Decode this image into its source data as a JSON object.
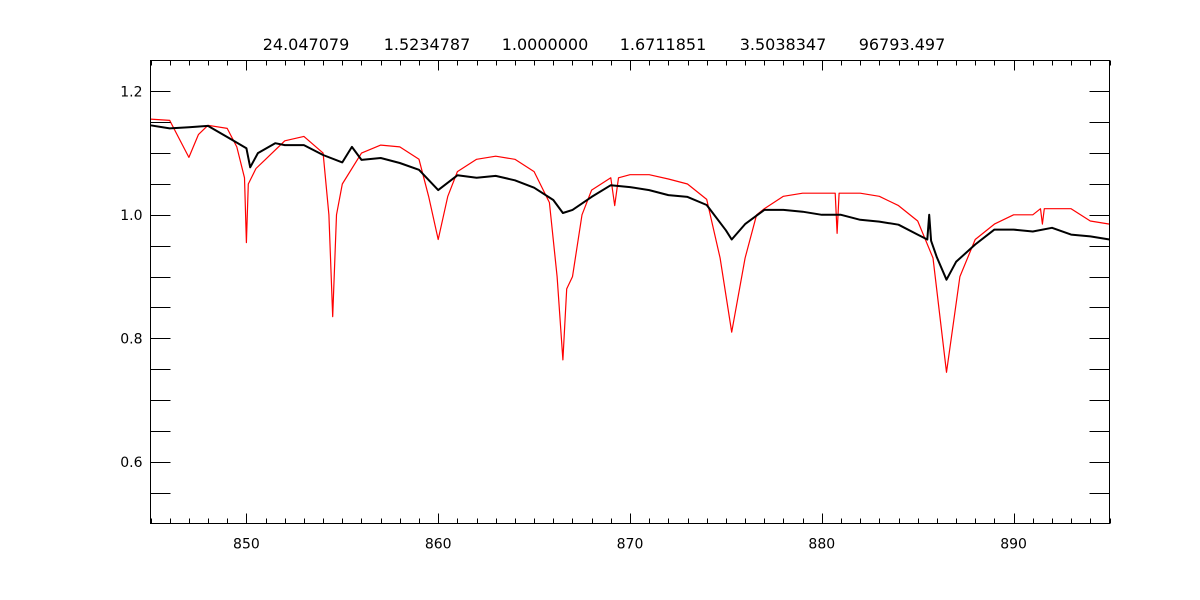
{
  "chart_data": {
    "type": "line",
    "title_values": [
      "24.047079",
      "1.5234787",
      "1.0000000",
      "1.6711851",
      "3.5038347",
      "96793.497"
    ],
    "xlabel": "",
    "ylabel": "",
    "xlim": [
      845,
      895
    ],
    "ylim": [
      0.5,
      1.25
    ],
    "x_ticks": [
      850,
      860,
      870,
      880,
      890
    ],
    "x_tick_labels": [
      "850",
      "860",
      "870",
      "880",
      "890"
    ],
    "x_minor_step": 1,
    "y_ticks": [
      0.6,
      0.8,
      1.0,
      1.2
    ],
    "y_tick_labels": [
      "0.6",
      "0.8",
      "1.0",
      "1.2"
    ],
    "y_minor_step": 0.05,
    "grid": false,
    "series": [
      {
        "color": "#ff0000",
        "x": [
          845,
          846,
          847,
          847.5,
          848,
          849,
          849.5,
          849.9,
          850.0,
          850.1,
          850.5,
          851,
          852,
          853,
          854,
          854.3,
          854.5,
          854.7,
          855,
          856,
          857,
          858,
          859,
          859.5,
          860,
          860.5,
          861,
          862,
          863,
          864,
          865,
          865.8,
          866.2,
          866.5,
          866.7,
          867,
          867.5,
          868,
          869,
          869.2,
          869.4,
          870,
          871,
          872,
          873,
          874,
          874.7,
          875.3,
          876,
          876.6,
          877,
          878,
          879,
          880,
          880.7,
          880.8,
          880.9,
          882,
          883,
          884,
          885,
          885.8,
          886.5,
          887.2,
          888,
          889,
          890,
          891,
          891.4,
          891.5,
          891.6,
          892,
          893,
          894,
          895
        ],
        "y": [
          1.155,
          1.153,
          1.093,
          1.13,
          1.145,
          1.14,
          1.11,
          1.06,
          0.955,
          1.05,
          1.075,
          1.09,
          1.12,
          1.127,
          1.1,
          1.0,
          0.835,
          1.0,
          1.05,
          1.1,
          1.113,
          1.11,
          1.09,
          1.03,
          0.96,
          1.03,
          1.07,
          1.09,
          1.095,
          1.09,
          1.07,
          1.02,
          0.9,
          0.765,
          0.88,
          0.9,
          1.0,
          1.04,
          1.06,
          1.015,
          1.06,
          1.065,
          1.065,
          1.058,
          1.05,
          1.025,
          0.93,
          0.81,
          0.93,
          1.0,
          1.01,
          1.03,
          1.035,
          1.035,
          1.035,
          0.97,
          1.035,
          1.035,
          1.03,
          1.015,
          0.99,
          0.93,
          0.745,
          0.9,
          0.96,
          0.985,
          1.0,
          1.0,
          1.01,
          0.985,
          1.01,
          1.01,
          1.01,
          0.99,
          0.985
        ]
      },
      {
        "color": "#000000",
        "x": [
          845,
          846,
          847,
          848,
          849,
          850,
          850.2,
          850.6,
          851.5,
          852,
          853,
          854,
          855,
          855.5,
          856,
          857,
          858,
          859,
          860,
          861,
          862,
          863,
          864,
          865,
          866,
          866.5,
          867,
          868,
          869,
          870,
          871,
          872,
          873,
          874,
          875,
          875.3,
          876,
          877,
          878,
          879,
          880,
          881,
          882,
          883,
          884,
          885,
          885.5,
          885.6,
          885.7,
          886,
          886.5,
          887,
          888,
          889,
          890,
          891,
          892,
          893,
          894,
          895
        ],
        "y": [
          1.145,
          1.14,
          1.142,
          1.144,
          1.126,
          1.108,
          1.077,
          1.1,
          1.116,
          1.113,
          1.113,
          1.097,
          1.085,
          1.11,
          1.089,
          1.092,
          1.084,
          1.073,
          1.04,
          1.064,
          1.06,
          1.063,
          1.056,
          1.044,
          1.024,
          1.003,
          1.008,
          1.029,
          1.048,
          1.045,
          1.04,
          1.032,
          1.029,
          1.016,
          0.975,
          0.96,
          0.985,
          1.008,
          1.008,
          1.005,
          1.0,
          1.0,
          0.992,
          0.989,
          0.984,
          0.968,
          0.96,
          1.0,
          0.958,
          0.931,
          0.895,
          0.924,
          0.952,
          0.976,
          0.976,
          0.973,
          0.979,
          0.968,
          0.965,
          0.96
        ]
      }
    ]
  }
}
